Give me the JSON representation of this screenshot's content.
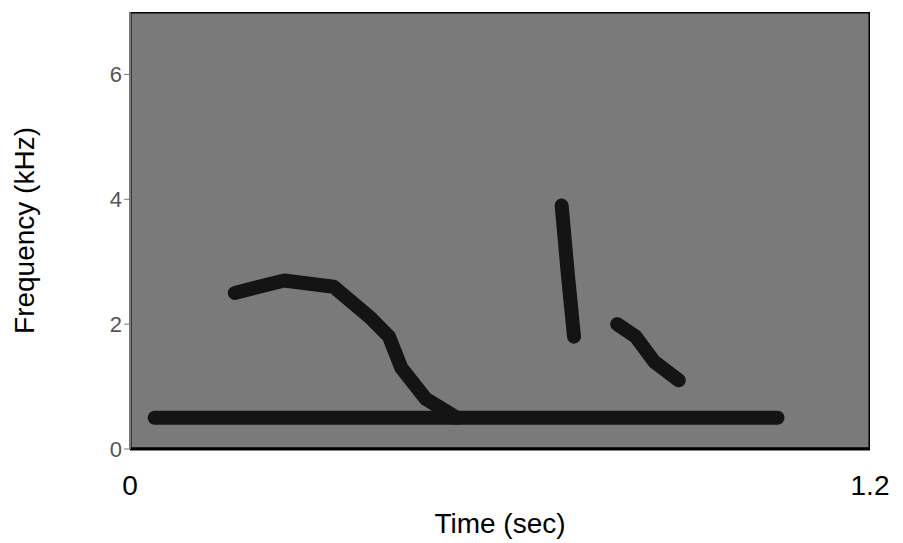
{
  "chart_data": {
    "type": "spectrogram",
    "x_label": "Time (sec)",
    "y_label": "Frequency (kHz)",
    "xlim": [
      0,
      1.2
    ],
    "xticks": [
      0,
      1.2
    ],
    "ylim": [
      0,
      7
    ],
    "yticks": [
      0,
      2,
      4,
      6
    ],
    "grid": false,
    "series": [
      {
        "color": "#141414",
        "x": [
          0.04,
          0.3,
          0.6,
          0.9,
          1.05
        ],
        "values": [
          0.5,
          0.5,
          0.5,
          0.5,
          0.5
        ]
      },
      {
        "color": "#141414",
        "x": [
          0.17,
          0.25,
          0.33,
          0.39,
          0.42,
          0.44,
          0.48,
          0.53
        ],
        "values": [
          2.5,
          2.7,
          2.6,
          2.1,
          1.8,
          1.3,
          0.8,
          0.5
        ]
      },
      {
        "color": "#141414",
        "x": [
          0.7,
          0.71,
          0.72
        ],
        "values": [
          3.9,
          2.8,
          1.8
        ]
      },
      {
        "color": "#141414",
        "x": [
          0.79,
          0.82,
          0.85,
          0.89
        ],
        "values": [
          2.0,
          1.8,
          1.4,
          1.1
        ]
      }
    ]
  }
}
